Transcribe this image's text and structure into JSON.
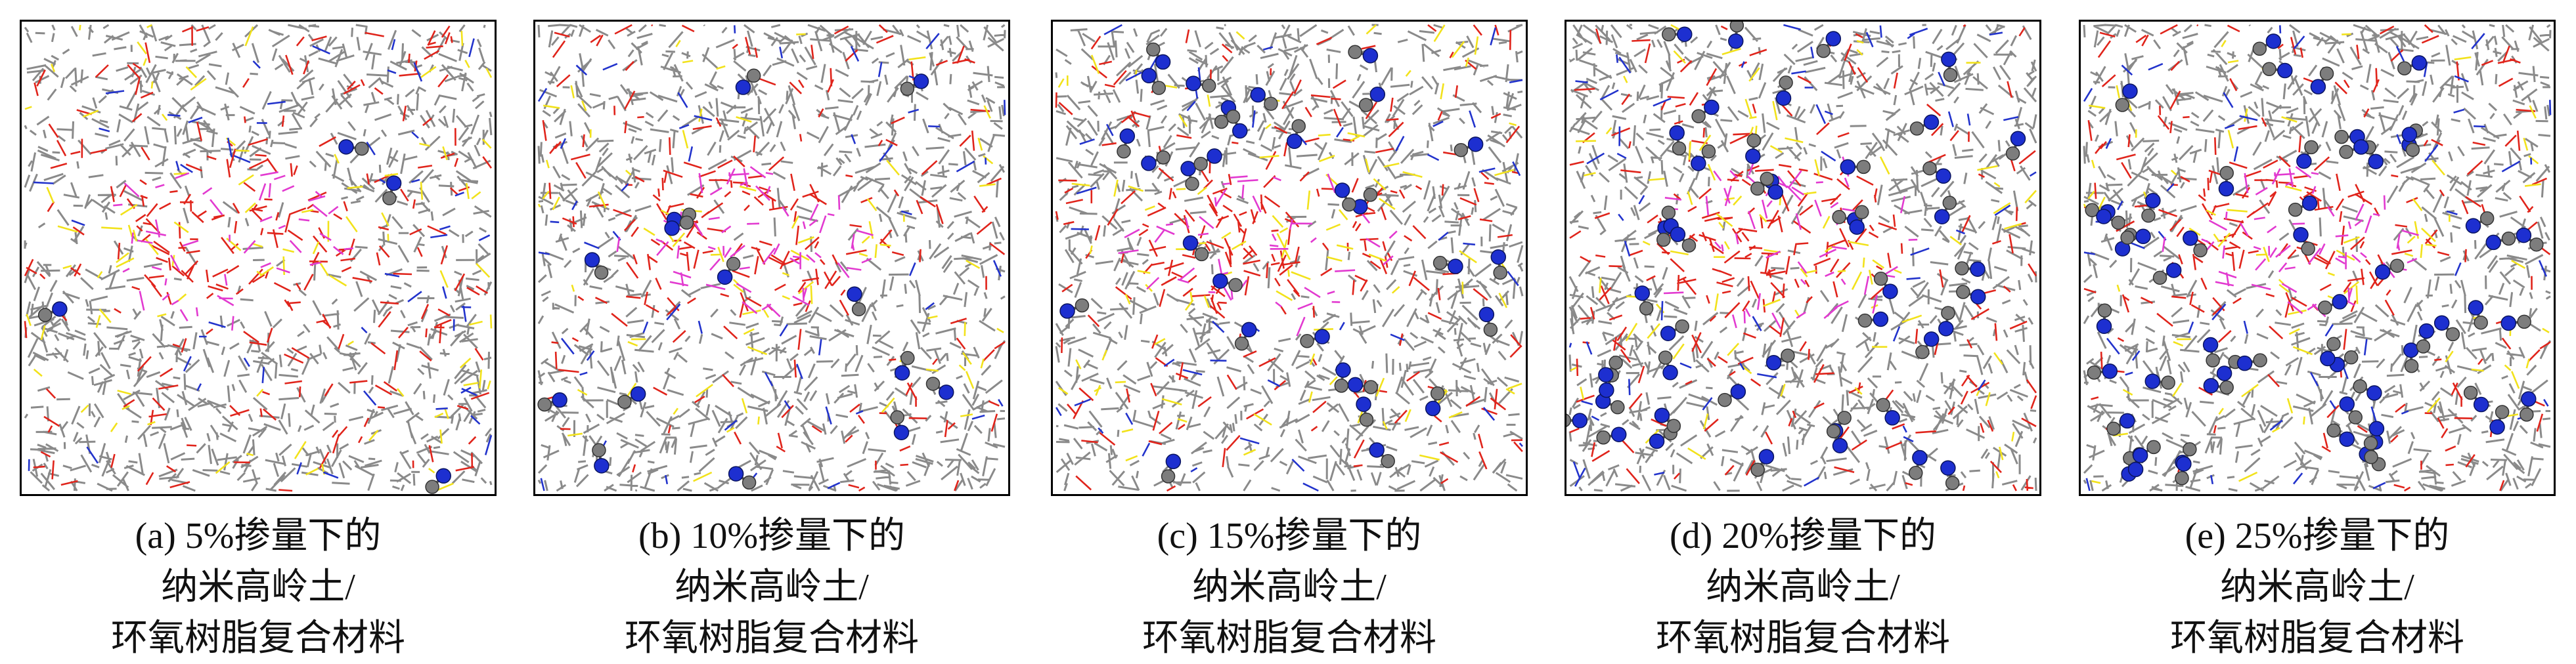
{
  "panels": [
    {
      "caption": [
        "(a) 5%掺量下的",
        "纳米高岭土/",
        "环氧树脂复合材料"
      ]
    },
    {
      "caption": [
        "(b) 10%掺量下的",
        "纳米高岭土/",
        "环氧树脂复合材料"
      ]
    },
    {
      "caption": [
        "(c) 15%掺量下的",
        "纳米高岭土/",
        "环氧树脂复合材料"
      ]
    },
    {
      "caption": [
        "(d) 20%掺量下的",
        "纳米高岭土/",
        "环氧树脂复合材料"
      ]
    },
    {
      "caption": [
        "(e) 25%掺量下的",
        "纳米高岭土/",
        "环氧树脂复合材料"
      ]
    }
  ]
}
